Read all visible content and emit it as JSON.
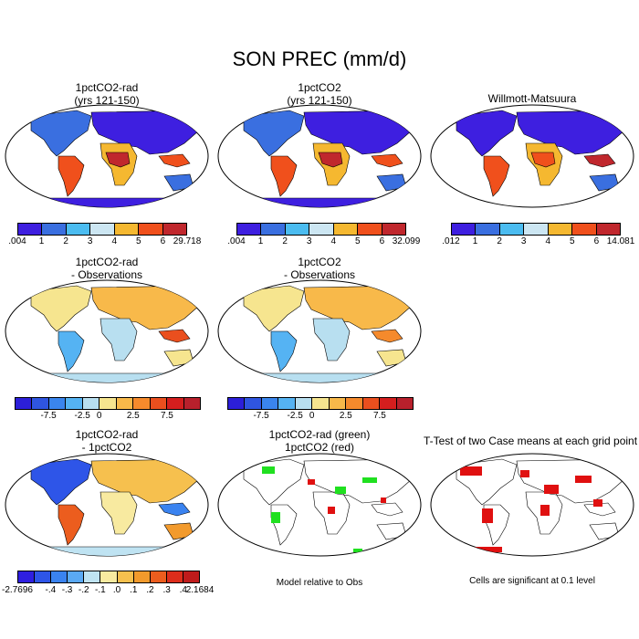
{
  "title": "SON PREC (mm/d)",
  "panels": {
    "p1": {
      "line1": "1pctCO2-rad",
      "line2": "(yrs 121-150)"
    },
    "p2": {
      "line1": "1pctCO2",
      "line2": "(yrs 121-150)"
    },
    "p3": {
      "line1": "Willmott-Matsuura",
      "line2": ""
    },
    "p4": {
      "line1": "1pctCO2-rad",
      "line2": "- Observations"
    },
    "p5": {
      "line1": "1pctCO2",
      "line2": "- Observations"
    },
    "p7": {
      "line1": "1pctCO2-rad",
      "line2": "- 1pctCO2"
    },
    "p8": {
      "line1": "1pctCO2-rad (green)",
      "line2": "1pctCO2 (red)"
    },
    "p9": {
      "line1": "T-Test of two Case means at each grid point",
      "line2": ""
    }
  },
  "colorbars": {
    "cb1": {
      "labels": [
        ".004",
        "1",
        "2",
        "3",
        "4",
        "5",
        "6",
        "29.718"
      ]
    },
    "cb2": {
      "labels": [
        ".004",
        "1",
        "2",
        "3",
        "4",
        "5",
        "6",
        "32.099"
      ]
    },
    "cb3": {
      "labels": [
        ".012",
        "1",
        "2",
        "3",
        "4",
        "5",
        "6",
        "14.081"
      ]
    },
    "cb4": {
      "labels": [
        "-7.5",
        "-2.5",
        "0",
        "2.5",
        "7.5"
      ]
    },
    "cb5": {
      "labels": [
        "-7.5",
        "-2.5",
        "0",
        "2.5",
        "7.5"
      ]
    },
    "cb7": {
      "labels": [
        "-2.7696",
        "-.4",
        "-.3",
        "-.2",
        "-.1",
        ".0",
        ".1",
        ".2",
        ".3",
        ".4",
        "2.1684"
      ]
    }
  },
  "notes": {
    "p8": "Model relative to Obs",
    "p9": "Cells are significant at 0.1 level"
  },
  "colors": {
    "abs_scale": [
      "#3e1fe0",
      "#3a6fe0",
      "#4bbcf0",
      "#cce6f2",
      "#f5b830",
      "#f0501c",
      "#c0272d"
    ],
    "diff10": [
      "#2c1fd9",
      "#2f55e0",
      "#3a85ee",
      "#55b3f3",
      "#b8dff0",
      "#f6e58f",
      "#f8b94a",
      "#f58a2c",
      "#ea4f1e",
      "#d41e1e",
      "#b8202c"
    ],
    "diff_row3": [
      "#2f1fe0",
      "#2e55e8",
      "#3a83f0",
      "#5aa9f4",
      "#bfe3f2",
      "#f8eaa0",
      "#f6c04e",
      "#f29a2c",
      "#ec5d1e",
      "#dd2d1b",
      "#bf1b1b"
    ]
  }
}
